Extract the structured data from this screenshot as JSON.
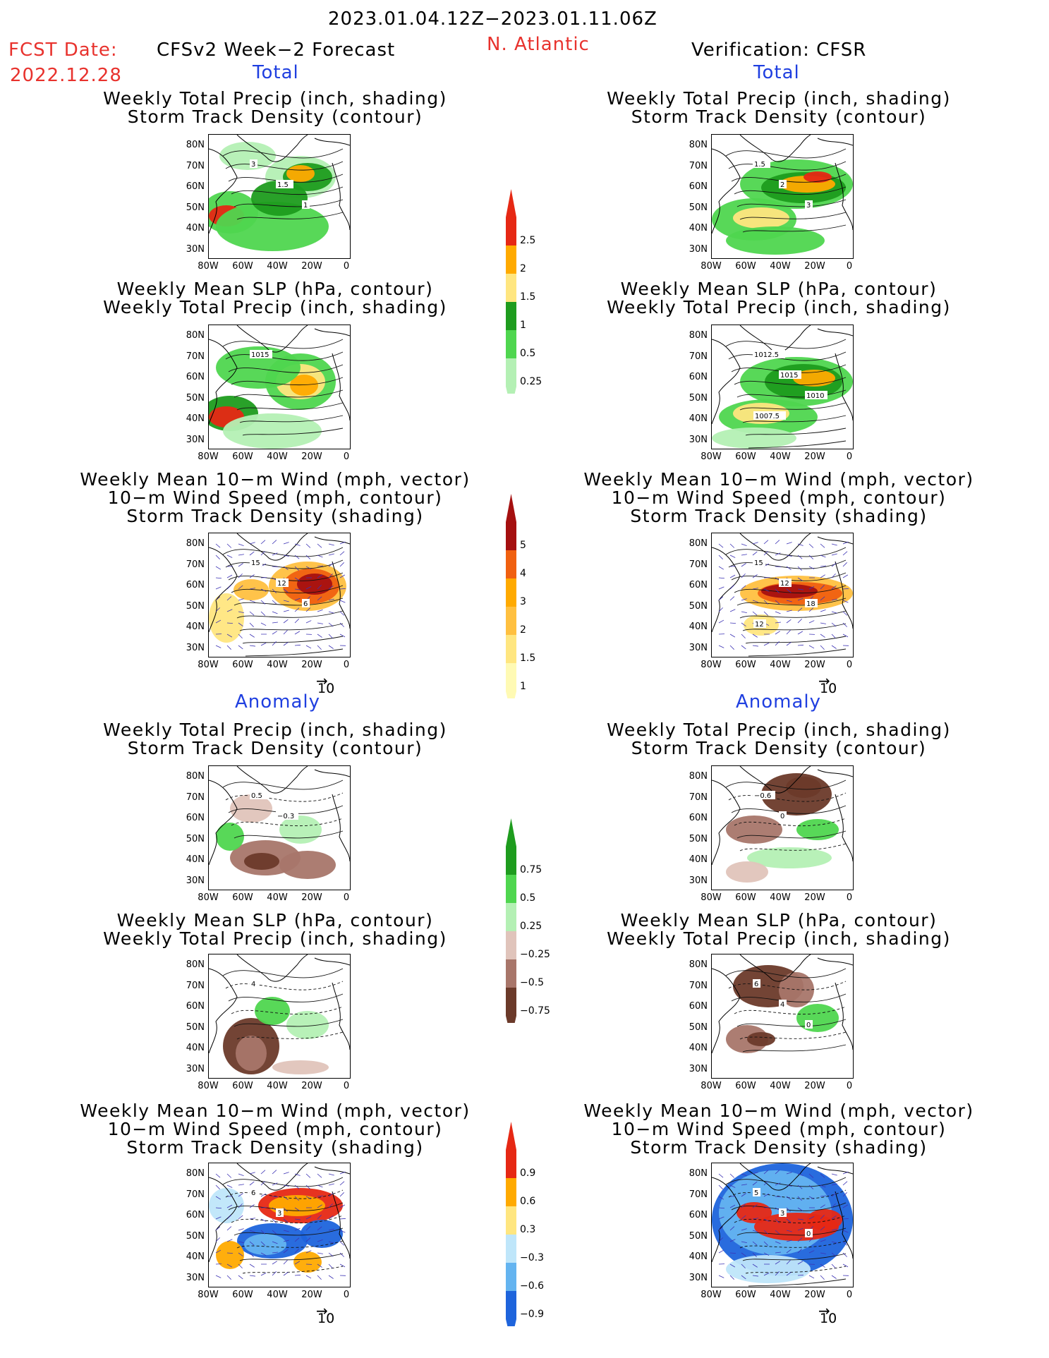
{
  "header": {
    "period": "2023.01.04.12Z−2023.01.11.06Z",
    "fcst_label": "FCST Date:",
    "fcst_date": "2022.12.28",
    "left_title": "CFSv2 Week−2 Forecast",
    "region": "N. Atlantic",
    "right_title": "Verification: CFSR"
  },
  "sections": {
    "total": "Total",
    "anomaly": "Anomaly"
  },
  "panel_titles": {
    "precip_storm": [
      "Weekly Total Precip (inch, shading)",
      "Storm Track Density (contour)"
    ],
    "slp_precip": [
      "Weekly Mean SLP (hPa, contour)",
      "Weekly Total Precip (inch, shading)"
    ],
    "wind_storm": [
      "Weekly Mean 10−m Wind (mph, vector)",
      "10−m Wind Speed (mph, contour)",
      "Storm Track Density (shading)"
    ]
  },
  "axes": {
    "lat_ticks": [
      "80N",
      "70N",
      "60N",
      "50N",
      "40N",
      "30N"
    ],
    "lon_ticks": [
      "80W",
      "60W",
      "40W",
      "20W",
      "0"
    ]
  },
  "vector_ref": "10",
  "colorbars": {
    "precip_total": [
      "0.25",
      "0.5",
      "1",
      "1.5",
      "2",
      "2.5"
    ],
    "storm_total": [
      "1",
      "1.5",
      "2",
      "3",
      "4",
      "5"
    ],
    "precip_anom": [
      "−0.75",
      "−0.5",
      "−0.25",
      "0.25",
      "0.5",
      "0.75"
    ],
    "storm_anom": [
      "−0.9",
      "−0.6",
      "−0.3",
      "0.3",
      "0.6",
      "0.9"
    ]
  },
  "contour_labels": {
    "fc_precip_storm": [
      "3",
      "1.5",
      "1"
    ],
    "ver_precip_storm": [
      "1.5",
      "2",
      "3"
    ],
    "fc_slp_precip": [
      "1015"
    ],
    "ver_slp_precip": [
      "1012.5",
      "1015",
      "1010",
      "1007.5"
    ],
    "fc_wind_storm": [
      "15",
      "12",
      "6"
    ],
    "ver_wind_storm": [
      "15",
      "12",
      "18",
      "12"
    ],
    "fc_anom_precip": [
      "0.5",
      "−0.3"
    ],
    "ver_anom_precip": [
      "−0.6",
      "0"
    ],
    "fc_anom_slp": [
      "4"
    ],
    "ver_anom_slp": [
      "6",
      "4",
      "0"
    ],
    "fc_anom_wind": [
      "6",
      "3"
    ],
    "ver_anom_wind": [
      "5",
      "3",
      "0"
    ]
  },
  "colors": {
    "green_dark": "#1e9c1e",
    "green_mid": "#4fd64f",
    "green_light": "#b4f0b4",
    "yellow": "#ffe680",
    "orange": "#ffaa00",
    "red": "#e62814",
    "dark_red": "#a51010",
    "brown_dark": "#6b3a2a",
    "brown_mid": "#a8766a",
    "brown_light": "#e0c4bb",
    "blue_dark": "#1e64dc",
    "blue_mid": "#64b4f0",
    "blue_light": "#bfe6fa"
  }
}
